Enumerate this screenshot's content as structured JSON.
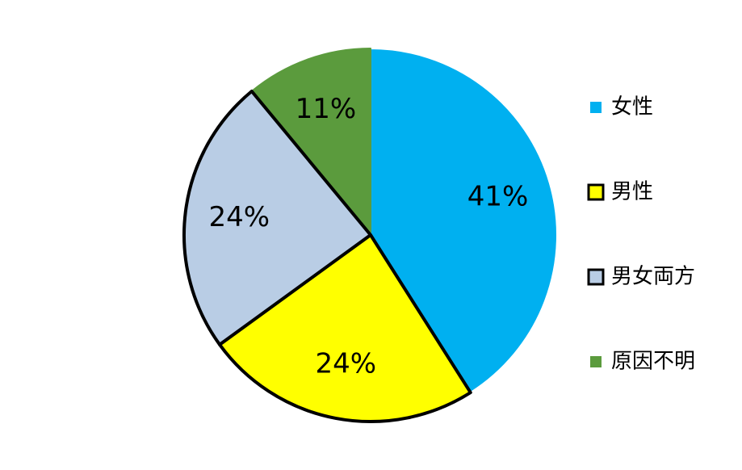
{
  "chart_data": {
    "type": "pie",
    "categories": [
      "女性",
      "男性",
      "男女両方",
      "原因不明"
    ],
    "values": [
      41,
      24,
      24,
      11
    ],
    "value_labels": [
      "41%",
      "24%",
      "24%",
      "11%"
    ],
    "colors": [
      "#00b0f0",
      "#ffff00",
      "#b9cde5",
      "#5b9b3d"
    ],
    "edgecolors": [
      "#ffffff",
      "#000000",
      "#000000",
      "#5b9b3d"
    ],
    "legend": "right"
  }
}
